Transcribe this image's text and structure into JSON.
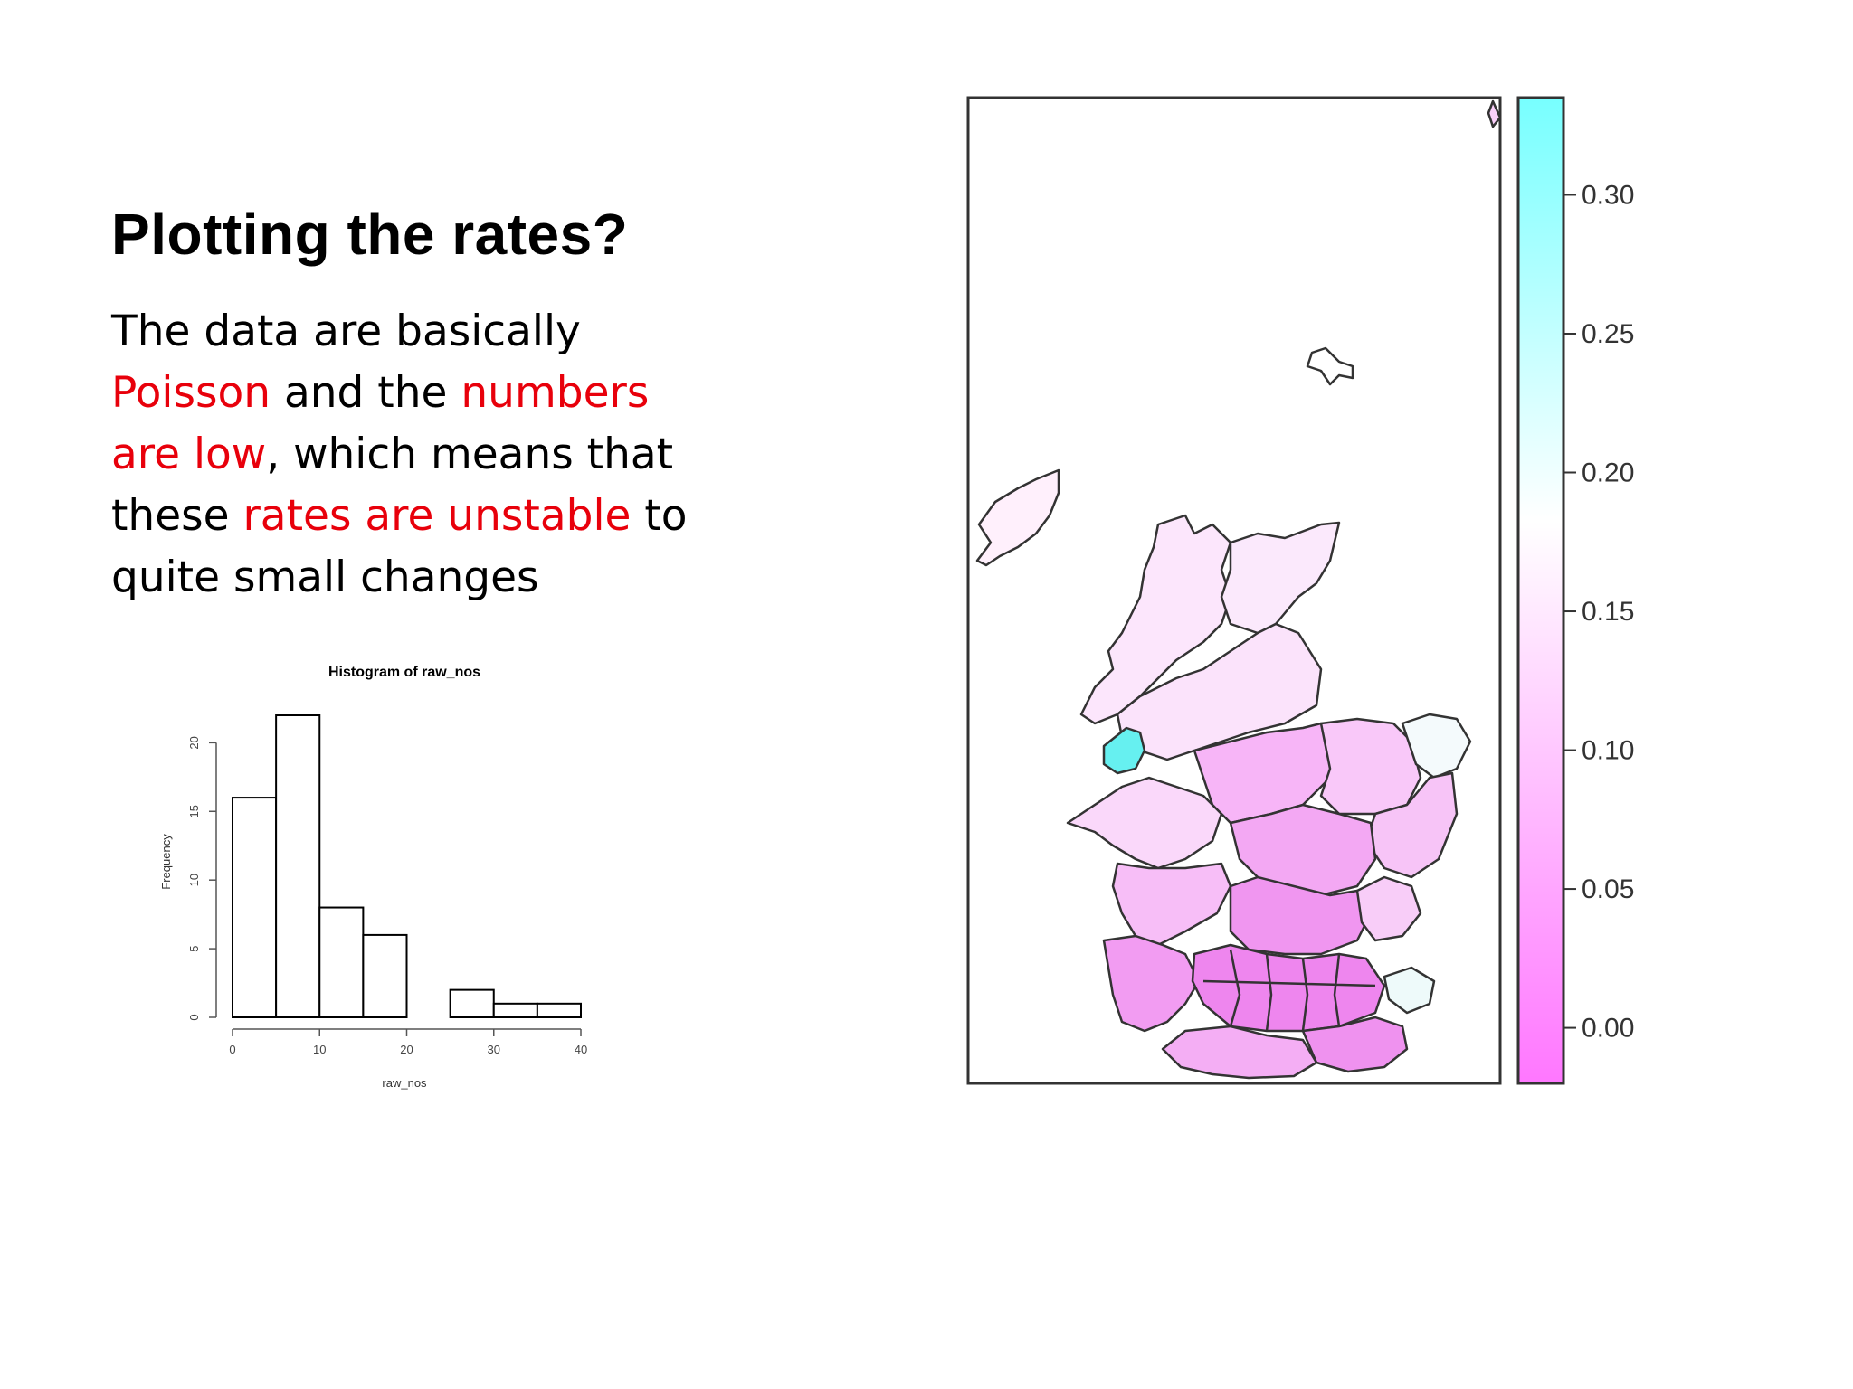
{
  "slide": {
    "title": "Plotting the rates?",
    "body": {
      "s1": "The data are basically ",
      "s2": "Poisson",
      "s3": " and the ",
      "s4": "numbers are low",
      "s5": ", which means that these ",
      "s6": "rates are unstable",
      "s7": " to quite small changes"
    },
    "colors": {
      "emphasis": "#e8000b",
      "text": "#000000"
    }
  },
  "chart_data": [
    {
      "type": "bar",
      "title": "Histogram of raw_nos",
      "xlabel": "raw_nos",
      "ylabel": "Frequency",
      "bins": [
        [
          0,
          5
        ],
        [
          5,
          10
        ],
        [
          10,
          15
        ],
        [
          15,
          20
        ],
        [
          20,
          25
        ],
        [
          25,
          30
        ],
        [
          30,
          35
        ],
        [
          35,
          40
        ]
      ],
      "values": [
        16,
        22,
        8,
        6,
        0,
        2,
        1,
        1
      ],
      "xticks": [
        "0",
        "10",
        "20",
        "30",
        "40"
      ],
      "yticks": [
        "0",
        "5",
        "10",
        "15",
        "20"
      ],
      "xlim": [
        0,
        40
      ],
      "ylim": [
        0,
        22
      ]
    },
    {
      "type": "heatmap",
      "map": "choropleth of rates",
      "colorbar": {
        "ticks": [
          "0.00",
          "0.05",
          "0.10",
          "0.15",
          "0.20",
          "0.25",
          "0.30"
        ],
        "range": [
          -0.02,
          0.335
        ],
        "low_color": "#ff77ff",
        "mid_color": "#ffffff",
        "high_color": "#77ffff"
      }
    }
  ]
}
